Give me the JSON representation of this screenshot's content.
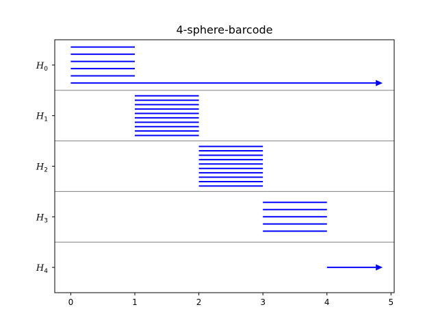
{
  "chart_data": {
    "type": "barcode",
    "title": "4-sphere-barcode",
    "xlabel": "",
    "ylabel": "",
    "xlim": [
      -0.25,
      5.05
    ],
    "x_ticks": [
      0,
      1,
      2,
      3,
      4,
      5
    ],
    "x_tick_labels": [
      "0",
      "1",
      "2",
      "3",
      "4",
      "5"
    ],
    "grid": false,
    "bar_color": "#0000ff",
    "separator_color": "#808080",
    "groups": [
      {
        "label_base": "H",
        "label_sub": "0",
        "bars": [
          {
            "start": 0,
            "end": 1
          },
          {
            "start": 0,
            "end": 1
          },
          {
            "start": 0,
            "end": 1
          },
          {
            "start": 0,
            "end": 1
          },
          {
            "start": 0,
            "end": 1
          },
          {
            "start": 0,
            "end": null,
            "infinite": true
          }
        ]
      },
      {
        "label_base": "H",
        "label_sub": "1",
        "bars": [
          {
            "start": 1,
            "end": 2
          },
          {
            "start": 1,
            "end": 2
          },
          {
            "start": 1,
            "end": 2
          },
          {
            "start": 1,
            "end": 2
          },
          {
            "start": 1,
            "end": 2
          },
          {
            "start": 1,
            "end": 2
          },
          {
            "start": 1,
            "end": 2
          },
          {
            "start": 1,
            "end": 2
          },
          {
            "start": 1,
            "end": 2
          },
          {
            "start": 1,
            "end": 2
          }
        ]
      },
      {
        "label_base": "H",
        "label_sub": "2",
        "bars": [
          {
            "start": 2,
            "end": 3
          },
          {
            "start": 2,
            "end": 3
          },
          {
            "start": 2,
            "end": 3
          },
          {
            "start": 2,
            "end": 3
          },
          {
            "start": 2,
            "end": 3
          },
          {
            "start": 2,
            "end": 3
          },
          {
            "start": 2,
            "end": 3
          },
          {
            "start": 2,
            "end": 3
          },
          {
            "start": 2,
            "end": 3
          },
          {
            "start": 2,
            "end": 3
          }
        ]
      },
      {
        "label_base": "H",
        "label_sub": "3",
        "bars": [
          {
            "start": 3,
            "end": 4
          },
          {
            "start": 3,
            "end": 4
          },
          {
            "start": 3,
            "end": 4
          },
          {
            "start": 3,
            "end": 4
          },
          {
            "start": 3,
            "end": 4
          }
        ]
      },
      {
        "label_base": "H",
        "label_sub": "4",
        "bars": [
          {
            "start": 4,
            "end": null,
            "infinite": true
          }
        ]
      }
    ]
  }
}
